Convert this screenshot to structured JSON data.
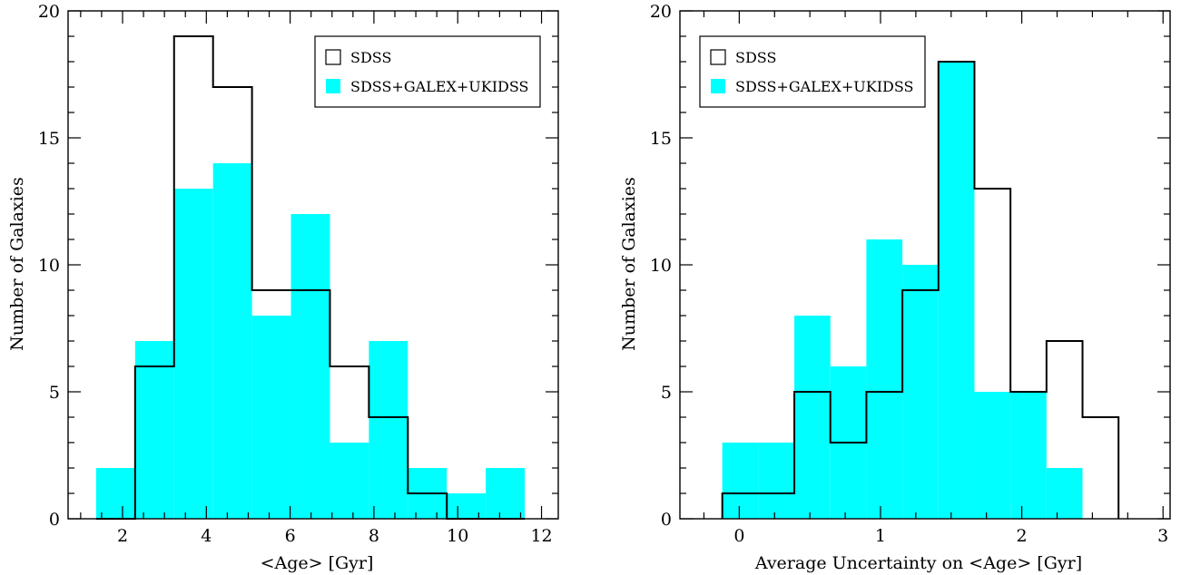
{
  "colors": {
    "fill_series": "#00ffff",
    "outline_series": "#000000",
    "background": "#ffffff"
  },
  "chart_data": [
    {
      "type": "bar",
      "subtype": "histogram",
      "title": "",
      "xlabel": "<Age> [Gyr]",
      "ylabel": "Number of Galaxies",
      "xlim": [
        0.7,
        12.4
      ],
      "ylim": [
        0,
        20
      ],
      "xticks": [
        2,
        4,
        6,
        8,
        10,
        12
      ],
      "yticks": [
        0,
        5,
        10,
        15,
        20
      ],
      "grid": false,
      "legend_position": "top-right",
      "bin_edges": [
        1.37,
        2.3,
        3.23,
        4.16,
        5.09,
        6.02,
        6.95,
        7.88,
        8.81,
        9.74,
        10.67,
        11.6
      ],
      "series": [
        {
          "name": "SDSS",
          "style": "outline",
          "values": [
            0,
            6,
            19,
            17,
            9,
            9,
            6,
            4,
            1,
            0,
            0
          ]
        },
        {
          "name": "SDSS+GALEX+UKIDSS",
          "style": "filled",
          "values": [
            2,
            7,
            13,
            14,
            8,
            12,
            3,
            7,
            2,
            1,
            2
          ]
        }
      ]
    },
    {
      "type": "bar",
      "subtype": "histogram",
      "title": "",
      "xlabel": "Average Uncertainty on <Age> [Gyr]",
      "ylabel": "Number of Galaxies",
      "xlim": [
        -0.42,
        3.05
      ],
      "ylim": [
        0,
        20
      ],
      "xticks": [
        0,
        1,
        2,
        3
      ],
      "yticks": [
        0,
        5,
        10,
        15,
        20
      ],
      "grid": false,
      "legend_position": "top-left",
      "bin_edges": [
        -0.12,
        0.135,
        0.39,
        0.645,
        0.9,
        1.155,
        1.41,
        1.665,
        1.92,
        2.175,
        2.43,
        2.685
      ],
      "series": [
        {
          "name": "SDSS",
          "style": "outline",
          "values": [
            1,
            1,
            5,
            3,
            5,
            9,
            18,
            13,
            5,
            7,
            4
          ]
        },
        {
          "name": "SDSS+GALEX+UKIDSS",
          "style": "filled",
          "values": [
            3,
            3,
            8,
            6,
            11,
            10,
            18,
            5,
            5,
            2,
            0
          ]
        }
      ]
    }
  ]
}
